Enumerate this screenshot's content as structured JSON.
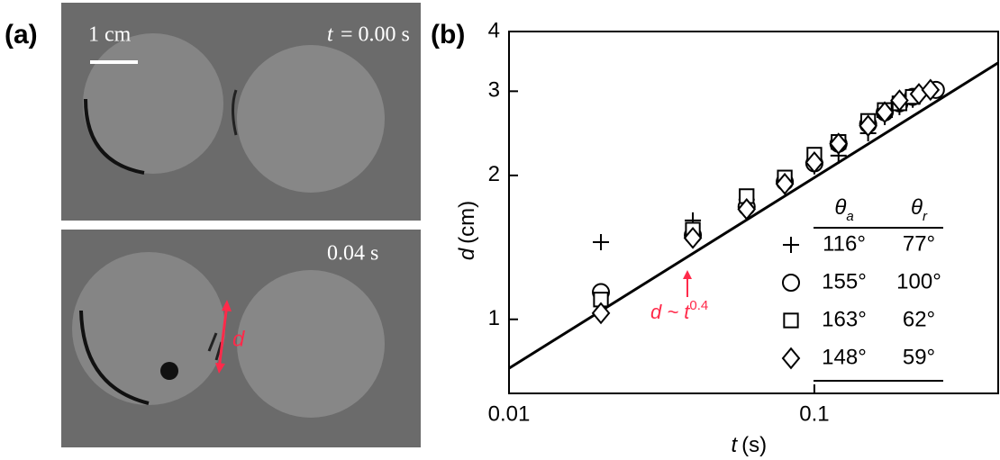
{
  "panel_a": {
    "label": "(a)",
    "scale_bar": "1 cm",
    "time_symbol": "t",
    "time_0": "= 0.00 s",
    "time_1": "0.04 s",
    "gap_label": "d"
  },
  "chart_data": {
    "type": "scatter",
    "panel_label": "(b)",
    "xlabel": {
      "symbol": "t",
      "unit": "(s)"
    },
    "ylabel": {
      "symbol": "d",
      "unit": "(cm)"
    },
    "log_x": true,
    "log_y": true,
    "xlim": [
      0.01,
      0.4
    ],
    "ylim": [
      0.7,
      4
    ],
    "xticks": [
      0.01,
      0.1
    ],
    "yticks": [
      1,
      2,
      3,
      4
    ],
    "legend_header": [
      {
        "symbol": "θ",
        "sub": "a"
      },
      {
        "symbol": "θ",
        "sub": "r"
      }
    ],
    "series": [
      {
        "name": "116°",
        "theta_r": "77°",
        "marker": "plus",
        "color": "#000000",
        "x": [
          0.02,
          0.04,
          0.06,
          0.08,
          0.1,
          0.12,
          0.15,
          0.17,
          0.19,
          0.21
        ],
        "values": [
          1.45,
          1.61,
          1.78,
          1.96,
          2.09,
          2.2,
          2.45,
          2.65,
          2.78,
          2.88
        ]
      },
      {
        "name": "155°",
        "theta_r": "100°",
        "marker": "circle",
        "color": "#000000",
        "x": [
          0.02,
          0.04,
          0.06,
          0.08,
          0.1,
          0.12,
          0.15,
          0.17,
          0.19,
          0.21,
          0.25
        ],
        "values": [
          1.14,
          1.5,
          1.72,
          1.94,
          2.12,
          2.33,
          2.56,
          2.71,
          2.83,
          2.92,
          3.02
        ]
      },
      {
        "name": "163°",
        "theta_r": "62°",
        "marker": "square",
        "color": "#000000",
        "x": [
          0.02,
          0.04,
          0.06,
          0.08,
          0.1,
          0.12,
          0.15,
          0.17,
          0.19,
          0.21
        ],
        "values": [
          1.1,
          1.54,
          1.81,
          1.98,
          2.21,
          2.35,
          2.6,
          2.74,
          2.83,
          2.92
        ]
      },
      {
        "name": "148°",
        "theta_r": "59°",
        "marker": "diamond",
        "color": "#000000",
        "x": [
          0.02,
          0.04,
          0.06,
          0.08,
          0.1,
          0.12,
          0.15,
          0.17,
          0.19,
          0.22,
          0.24
        ],
        "values": [
          1.03,
          1.48,
          1.7,
          1.92,
          2.13,
          2.33,
          2.54,
          2.71,
          2.87,
          2.96,
          3.02
        ]
      }
    ],
    "fit_line": {
      "x": [
        0.01,
        0.4
      ],
      "values": [
        0.79,
        3.44
      ],
      "color": "#000000",
      "label": "d ~ t",
      "exponent": "0.4",
      "label_color": "#ff2a4a"
    }
  }
}
